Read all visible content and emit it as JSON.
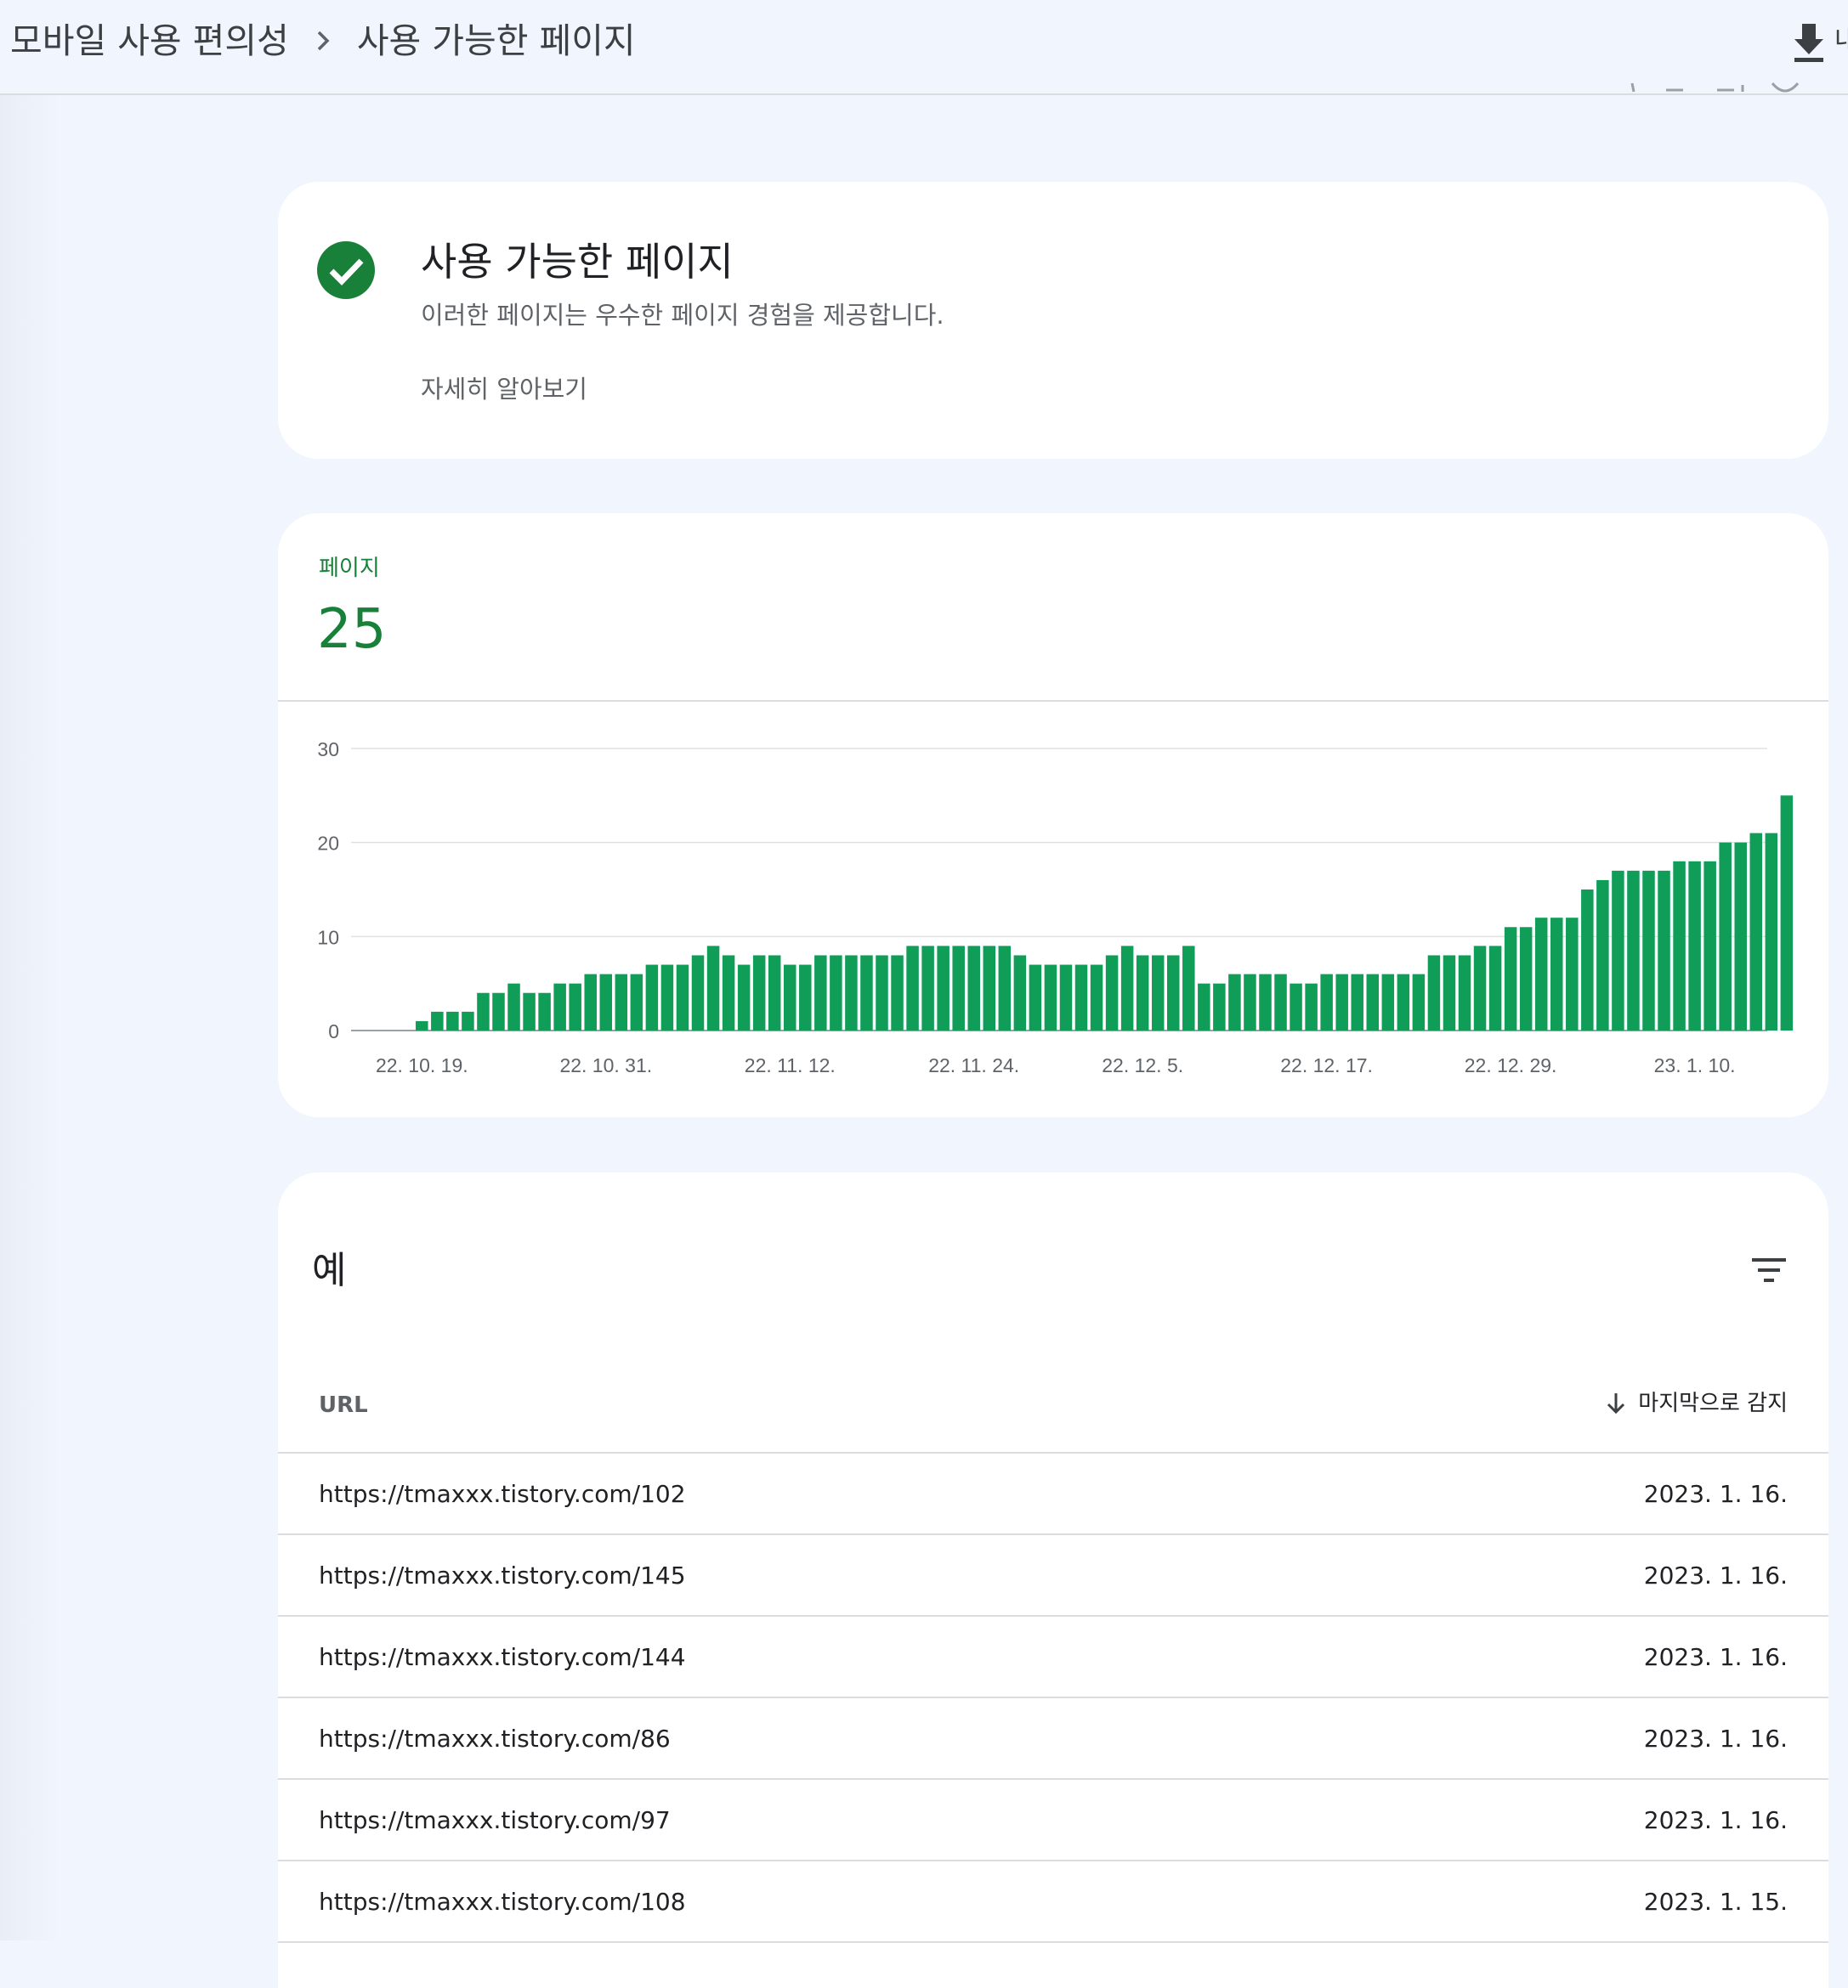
{
  "header": {
    "breadcrumb": [
      "모바일 사용 편의성",
      "사용 가능한 페이지"
    ],
    "export_label": "내"
  },
  "status_card": {
    "title": "사용 가능한 페이지",
    "subtitle": "이러한 페이지는 우수한 페이지 경험을 제공합니다.",
    "link": "자세히 알아보기"
  },
  "metric": {
    "label": "페이지",
    "value": "25"
  },
  "chart_data": {
    "type": "bar",
    "color": "#0f9d58",
    "ylim": [
      0,
      30
    ],
    "yticks": [
      "0",
      "10",
      "20",
      "30"
    ],
    "xtick_labels": [
      "22. 10. 19.",
      "22. 10. 31.",
      "22. 11. 12.",
      "22. 11. 24.",
      "22. 12. 5.",
      "22. 12. 17.",
      "22. 12. 29.",
      "23. 1. 10."
    ],
    "xtick_indices": [
      1,
      13,
      25,
      37,
      48,
      60,
      72,
      84
    ],
    "values": [
      0,
      1,
      2,
      2,
      2,
      4,
      4,
      5,
      4,
      4,
      5,
      5,
      6,
      6,
      6,
      6,
      7,
      7,
      7,
      8,
      9,
      8,
      7,
      8,
      8,
      7,
      7,
      8,
      8,
      8,
      8,
      8,
      8,
      9,
      9,
      9,
      9,
      9,
      9,
      9,
      8,
      7,
      7,
      7,
      7,
      7,
      8,
      9,
      8,
      8,
      8,
      9,
      5,
      5,
      6,
      6,
      6,
      6,
      5,
      5,
      6,
      6,
      6,
      6,
      6,
      6,
      6,
      8,
      8,
      8,
      9,
      9,
      11,
      11,
      12,
      12,
      12,
      15,
      16,
      17,
      17,
      17,
      17,
      18,
      18,
      18,
      20,
      20,
      21,
      21,
      25
    ]
  },
  "examples": {
    "title": "예",
    "col_url": "URL",
    "col_date": "마지막으로 감지",
    "rows": [
      {
        "url": "https://tmaxxx.tistory.com/102",
        "date": "2023. 1. 16."
      },
      {
        "url": "https://tmaxxx.tistory.com/145",
        "date": "2023. 1. 16."
      },
      {
        "url": "https://tmaxxx.tistory.com/144",
        "date": "2023. 1. 16."
      },
      {
        "url": "https://tmaxxx.tistory.com/86",
        "date": "2023. 1. 16."
      },
      {
        "url": "https://tmaxxx.tistory.com/97",
        "date": "2023. 1. 16."
      },
      {
        "url": "https://tmaxxx.tistory.com/108",
        "date": "2023. 1. 15."
      }
    ]
  }
}
